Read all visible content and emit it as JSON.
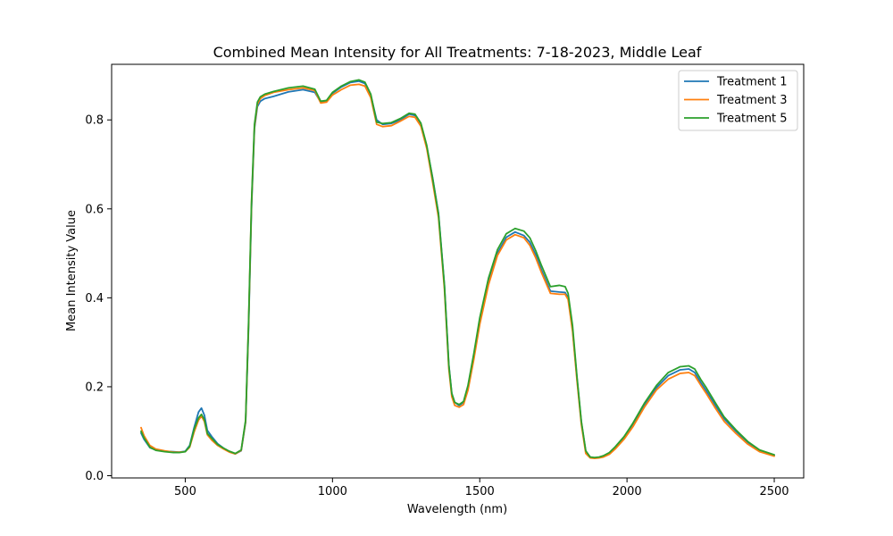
{
  "chart_data": {
    "type": "line",
    "title": "Combined Mean Intensity for All Treatments: 7-18-2023, Middle Leaf",
    "xlabel": "Wavelength (nm)",
    "ylabel": "Mean Intensity Value",
    "xlim": [
      250,
      2600
    ],
    "ylim": [
      -0.005,
      0.925
    ],
    "xticks": [
      500,
      1000,
      1500,
      2000,
      2500
    ],
    "yticks": [
      0.0,
      0.2,
      0.4,
      0.6,
      0.8
    ],
    "ytick_labels": [
      "0.0",
      "0.2",
      "0.4",
      "0.6",
      "0.8"
    ],
    "grid": false,
    "legend": "top-right",
    "series": [
      {
        "name": "Treatment 1",
        "color": "#1f77b4",
        "x": [
          350,
          360,
          380,
          400,
          430,
          460,
          480,
          500,
          515,
          530,
          545,
          555,
          565,
          575,
          590,
          610,
          630,
          650,
          670,
          690,
          705,
          715,
          725,
          735,
          745,
          755,
          770,
          800,
          850,
          900,
          940,
          960,
          980,
          1000,
          1030,
          1060,
          1090,
          1110,
          1130,
          1150,
          1170,
          1200,
          1230,
          1260,
          1280,
          1300,
          1320,
          1340,
          1360,
          1380,
          1395,
          1405,
          1415,
          1430,
          1445,
          1460,
          1480,
          1500,
          1530,
          1560,
          1590,
          1620,
          1650,
          1670,
          1690,
          1710,
          1740,
          1770,
          1790,
          1800,
          1815,
          1830,
          1845,
          1860,
          1875,
          1890,
          1905,
          1920,
          1940,
          1960,
          1990,
          2020,
          2060,
          2100,
          2140,
          2180,
          2210,
          2230,
          2250,
          2270,
          2300,
          2330,
          2370,
          2410,
          2450,
          2500
        ],
        "y": [
          0.096,
          0.082,
          0.063,
          0.058,
          0.055,
          0.054,
          0.053,
          0.055,
          0.068,
          0.108,
          0.143,
          0.152,
          0.136,
          0.102,
          0.088,
          0.072,
          0.062,
          0.054,
          0.049,
          0.056,
          0.12,
          0.33,
          0.6,
          0.78,
          0.83,
          0.842,
          0.848,
          0.853,
          0.863,
          0.868,
          0.862,
          0.84,
          0.842,
          0.86,
          0.874,
          0.884,
          0.887,
          0.882,
          0.855,
          0.8,
          0.79,
          0.792,
          0.8,
          0.813,
          0.81,
          0.79,
          0.74,
          0.67,
          0.59,
          0.43,
          0.25,
          0.185,
          0.165,
          0.158,
          0.165,
          0.2,
          0.27,
          0.35,
          0.44,
          0.5,
          0.536,
          0.548,
          0.54,
          0.525,
          0.497,
          0.462,
          0.415,
          0.413,
          0.412,
          0.4,
          0.33,
          0.22,
          0.12,
          0.055,
          0.042,
          0.04,
          0.041,
          0.043,
          0.05,
          0.062,
          0.085,
          0.115,
          0.16,
          0.198,
          0.225,
          0.238,
          0.24,
          0.232,
          0.21,
          0.19,
          0.158,
          0.128,
          0.1,
          0.075,
          0.057,
          0.046
        ]
      },
      {
        "name": "Treatment 3",
        "color": "#ff7f0e",
        "x": [
          350,
          360,
          380,
          400,
          430,
          460,
          480,
          500,
          515,
          530,
          545,
          555,
          565,
          575,
          590,
          610,
          630,
          650,
          670,
          690,
          705,
          715,
          725,
          735,
          745,
          755,
          770,
          800,
          850,
          900,
          940,
          960,
          980,
          1000,
          1030,
          1060,
          1090,
          1110,
          1130,
          1150,
          1170,
          1200,
          1230,
          1260,
          1280,
          1300,
          1320,
          1340,
          1360,
          1380,
          1395,
          1405,
          1415,
          1430,
          1445,
          1460,
          1480,
          1500,
          1530,
          1560,
          1590,
          1620,
          1650,
          1670,
          1690,
          1710,
          1740,
          1770,
          1790,
          1800,
          1815,
          1830,
          1845,
          1860,
          1875,
          1890,
          1905,
          1920,
          1940,
          1960,
          1990,
          2020,
          2060,
          2100,
          2140,
          2180,
          2210,
          2230,
          2250,
          2270,
          2300,
          2330,
          2370,
          2410,
          2450,
          2500
        ],
        "y": [
          0.108,
          0.09,
          0.068,
          0.06,
          0.056,
          0.053,
          0.053,
          0.054,
          0.064,
          0.098,
          0.125,
          0.134,
          0.122,
          0.092,
          0.08,
          0.068,
          0.06,
          0.053,
          0.049,
          0.057,
          0.122,
          0.34,
          0.61,
          0.785,
          0.835,
          0.848,
          0.855,
          0.862,
          0.868,
          0.872,
          0.866,
          0.838,
          0.84,
          0.856,
          0.868,
          0.878,
          0.88,
          0.876,
          0.85,
          0.79,
          0.785,
          0.787,
          0.797,
          0.808,
          0.806,
          0.786,
          0.736,
          0.66,
          0.58,
          0.42,
          0.24,
          0.178,
          0.158,
          0.154,
          0.16,
          0.192,
          0.262,
          0.34,
          0.43,
          0.495,
          0.53,
          0.542,
          0.535,
          0.518,
          0.49,
          0.456,
          0.41,
          0.408,
          0.408,
          0.396,
          0.325,
          0.215,
          0.115,
          0.05,
          0.04,
          0.039,
          0.04,
          0.042,
          0.048,
          0.06,
          0.082,
          0.11,
          0.155,
          0.193,
          0.217,
          0.23,
          0.232,
          0.225,
          0.204,
          0.184,
          0.152,
          0.122,
          0.095,
          0.071,
          0.054,
          0.044
        ]
      },
      {
        "name": "Treatment 5",
        "color": "#2ca02c",
        "x": [
          350,
          360,
          380,
          400,
          430,
          460,
          480,
          500,
          515,
          530,
          545,
          555,
          565,
          575,
          590,
          610,
          630,
          650,
          670,
          690,
          705,
          715,
          725,
          735,
          745,
          755,
          770,
          800,
          850,
          900,
          940,
          960,
          980,
          1000,
          1030,
          1060,
          1090,
          1110,
          1130,
          1150,
          1170,
          1200,
          1230,
          1260,
          1280,
          1300,
          1320,
          1340,
          1360,
          1380,
          1395,
          1405,
          1415,
          1430,
          1445,
          1460,
          1480,
          1500,
          1530,
          1560,
          1590,
          1620,
          1650,
          1670,
          1690,
          1710,
          1740,
          1770,
          1790,
          1800,
          1815,
          1830,
          1845,
          1860,
          1875,
          1890,
          1905,
          1920,
          1940,
          1960,
          1990,
          2020,
          2060,
          2100,
          2140,
          2180,
          2210,
          2230,
          2250,
          2270,
          2300,
          2330,
          2370,
          2410,
          2450,
          2500
        ],
        "y": [
          0.1,
          0.085,
          0.064,
          0.057,
          0.054,
          0.052,
          0.052,
          0.054,
          0.066,
          0.104,
          0.13,
          0.138,
          0.126,
          0.095,
          0.084,
          0.07,
          0.062,
          0.055,
          0.05,
          0.058,
          0.125,
          0.345,
          0.615,
          0.79,
          0.84,
          0.852,
          0.858,
          0.864,
          0.872,
          0.876,
          0.869,
          0.842,
          0.844,
          0.862,
          0.876,
          0.886,
          0.89,
          0.885,
          0.858,
          0.795,
          0.792,
          0.794,
          0.803,
          0.815,
          0.813,
          0.793,
          0.743,
          0.668,
          0.588,
          0.428,
          0.248,
          0.185,
          0.165,
          0.16,
          0.167,
          0.203,
          0.275,
          0.355,
          0.445,
          0.508,
          0.544,
          0.556,
          0.55,
          0.535,
          0.506,
          0.472,
          0.425,
          0.428,
          0.425,
          0.41,
          0.338,
          0.224,
          0.122,
          0.056,
          0.042,
          0.041,
          0.042,
          0.045,
          0.052,
          0.065,
          0.088,
          0.118,
          0.164,
          0.203,
          0.232,
          0.245,
          0.247,
          0.24,
          0.217,
          0.197,
          0.164,
          0.132,
          0.103,
          0.077,
          0.058,
          0.047
        ]
      }
    ]
  }
}
